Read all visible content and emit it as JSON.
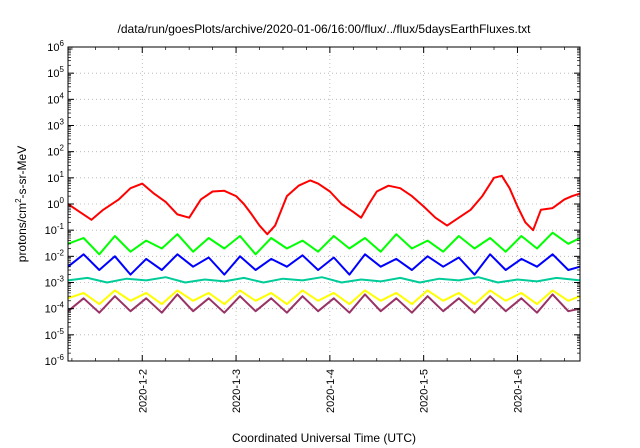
{
  "chart_data": {
    "type": "line",
    "title": "/data/run/goesPlots/archive/2020-01-06/16:00/flux/../flux/5daysEarthFluxes.txt",
    "xlabel": "Coordinated Universal Time (UTC)",
    "ylabel": {
      "base": "protons/cm",
      "exp": "2",
      "rest": "-s-sr-MeV"
    },
    "y_scale": "log",
    "ylim": [
      1e-06,
      1000000.0
    ],
    "xlim": [
      "2020-01-01T05:00",
      "2020-01-06T16:00"
    ],
    "grid": true,
    "legend": "none",
    "y_ticks": [
      {
        "value": 1e-06,
        "base": "10",
        "exp": "-6"
      },
      {
        "value": 1e-05,
        "base": "10",
        "exp": "-5"
      },
      {
        "value": 0.0001,
        "base": "10",
        "exp": "-4"
      },
      {
        "value": 0.001,
        "base": "10",
        "exp": "-3"
      },
      {
        "value": 0.01,
        "base": "10",
        "exp": "-2"
      },
      {
        "value": 0.1,
        "base": "10",
        "exp": "-1"
      },
      {
        "value": 1,
        "base": "10",
        "exp": "0"
      },
      {
        "value": 10,
        "base": "10",
        "exp": "1"
      },
      {
        "value": 100,
        "base": "10",
        "exp": "2"
      },
      {
        "value": 1000,
        "base": "10",
        "exp": "3"
      },
      {
        "value": 10000,
        "base": "10",
        "exp": "4"
      },
      {
        "value": 100000,
        "base": "10",
        "exp": "5"
      },
      {
        "value": 1000000,
        "base": "10",
        "exp": "6"
      }
    ],
    "x_ticks": [
      {
        "value": "2020-01-02T00:00",
        "label": "2020-1-2"
      },
      {
        "value": "2020-01-03T00:00",
        "label": "2020-1-3"
      },
      {
        "value": "2020-01-04T00:00",
        "label": "2020-1-4"
      },
      {
        "value": "2020-01-05T00:00",
        "label": "2020-1-5"
      },
      {
        "value": "2020-01-06T00:00",
        "label": "2020-1-6"
      }
    ],
    "series": [
      {
        "color": "#ff0000",
        "x": [
          "2020-01-01T05:00",
          "2020-01-01T08:00",
          "2020-01-01T11:00",
          "2020-01-01T14:00",
          "2020-01-01T18:00",
          "2020-01-01T21:00",
          "2020-01-02T00:00",
          "2020-01-02T03:00",
          "2020-01-02T06:00",
          "2020-01-02T09:00",
          "2020-01-02T12:00",
          "2020-01-02T15:00",
          "2020-01-02T18:00",
          "2020-01-02T21:00",
          "2020-01-03T00:00",
          "2020-01-03T02:00",
          "2020-01-03T04:00",
          "2020-01-03T06:00",
          "2020-01-03T08:00",
          "2020-01-03T10:00",
          "2020-01-03T13:00",
          "2020-01-03T16:00",
          "2020-01-03T19:00",
          "2020-01-03T21:00",
          "2020-01-04T00:00",
          "2020-01-04T03:00",
          "2020-01-04T06:00",
          "2020-01-04T08:00",
          "2020-01-04T10:00",
          "2020-01-04T12:00",
          "2020-01-04T15:00",
          "2020-01-04T18:00",
          "2020-01-04T21:00",
          "2020-01-05T00:00",
          "2020-01-05T03:00",
          "2020-01-05T06:00",
          "2020-01-05T09:00",
          "2020-01-05T12:00",
          "2020-01-05T15:00",
          "2020-01-05T18:00",
          "2020-01-05T20:00",
          "2020-01-05T22:00",
          "2020-01-06T00:00",
          "2020-01-06T02:00",
          "2020-01-06T04:00",
          "2020-01-06T06:00",
          "2020-01-06T09:00",
          "2020-01-06T12:00",
          "2020-01-06T14:00",
          "2020-01-06T16:00"
        ],
        "y": [
          1.0,
          0.5,
          0.25,
          0.6,
          1.5,
          4,
          6,
          2.5,
          1.2,
          0.4,
          0.3,
          1.5,
          3,
          3.2,
          2,
          1.0,
          0.4,
          0.15,
          0.07,
          0.15,
          2,
          5,
          8,
          6,
          3,
          1.0,
          0.5,
          0.3,
          1.0,
          3,
          5,
          4,
          2,
          0.8,
          0.3,
          0.15,
          0.3,
          0.6,
          2,
          10,
          12,
          4,
          0.8,
          0.2,
          0.1,
          0.6,
          0.7,
          1.5,
          2,
          2.5
        ]
      },
      {
        "color": "#00ff00",
        "x": [
          "2020-01-01T05:00",
          "2020-01-01T09:00",
          "2020-01-01T13:00",
          "2020-01-01T17:00",
          "2020-01-01T21:00",
          "2020-01-02T01:00",
          "2020-01-02T05:00",
          "2020-01-02T09:00",
          "2020-01-02T13:00",
          "2020-01-02T17:00",
          "2020-01-02T21:00",
          "2020-01-03T01:00",
          "2020-01-03T05:00",
          "2020-01-03T09:00",
          "2020-01-03T13:00",
          "2020-01-03T17:00",
          "2020-01-03T21:00",
          "2020-01-04T01:00",
          "2020-01-04T05:00",
          "2020-01-04T09:00",
          "2020-01-04T13:00",
          "2020-01-04T17:00",
          "2020-01-04T21:00",
          "2020-01-05T01:00",
          "2020-01-05T05:00",
          "2020-01-05T09:00",
          "2020-01-05T13:00",
          "2020-01-05T17:00",
          "2020-01-05T21:00",
          "2020-01-06T01:00",
          "2020-01-06T05:00",
          "2020-01-06T09:00",
          "2020-01-06T13:00",
          "2020-01-06T16:00"
        ],
        "y": [
          0.03,
          0.05,
          0.012,
          0.06,
          0.015,
          0.04,
          0.02,
          0.07,
          0.015,
          0.05,
          0.02,
          0.06,
          0.012,
          0.05,
          0.02,
          0.04,
          0.015,
          0.06,
          0.02,
          0.05,
          0.015,
          0.07,
          0.02,
          0.04,
          0.015,
          0.06,
          0.02,
          0.05,
          0.015,
          0.06,
          0.02,
          0.08,
          0.03,
          0.05
        ]
      },
      {
        "color": "#0000ff",
        "x": [
          "2020-01-01T05:00",
          "2020-01-01T09:00",
          "2020-01-01T13:00",
          "2020-01-01T17:00",
          "2020-01-01T21:00",
          "2020-01-02T01:00",
          "2020-01-02T05:00",
          "2020-01-02T09:00",
          "2020-01-02T13:00",
          "2020-01-02T17:00",
          "2020-01-02T21:00",
          "2020-01-03T01:00",
          "2020-01-03T05:00",
          "2020-01-03T09:00",
          "2020-01-03T13:00",
          "2020-01-03T17:00",
          "2020-01-03T21:00",
          "2020-01-04T01:00",
          "2020-01-04T05:00",
          "2020-01-04T09:00",
          "2020-01-04T13:00",
          "2020-01-04T17:00",
          "2020-01-04T21:00",
          "2020-01-05T01:00",
          "2020-01-05T05:00",
          "2020-01-05T09:00",
          "2020-01-05T13:00",
          "2020-01-05T17:00",
          "2020-01-05T21:00",
          "2020-01-06T01:00",
          "2020-01-06T05:00",
          "2020-01-06T09:00",
          "2020-01-06T13:00",
          "2020-01-06T16:00"
        ],
        "y": [
          0.004,
          0.012,
          0.003,
          0.01,
          0.002,
          0.008,
          0.003,
          0.012,
          0.004,
          0.009,
          0.002,
          0.01,
          0.003,
          0.008,
          0.004,
          0.011,
          0.003,
          0.009,
          0.002,
          0.012,
          0.004,
          0.008,
          0.003,
          0.01,
          0.004,
          0.009,
          0.002,
          0.012,
          0.003,
          0.008,
          0.004,
          0.012,
          0.003,
          0.004
        ]
      },
      {
        "color": "#00cc99",
        "x": [
          "2020-01-01T05:00",
          "2020-01-01T10:00",
          "2020-01-01T15:00",
          "2020-01-01T20:00",
          "2020-01-02T01:00",
          "2020-01-02T06:00",
          "2020-01-02T11:00",
          "2020-01-02T16:00",
          "2020-01-02T21:00",
          "2020-01-03T02:00",
          "2020-01-03T07:00",
          "2020-01-03T12:00",
          "2020-01-03T17:00",
          "2020-01-03T22:00",
          "2020-01-04T03:00",
          "2020-01-04T08:00",
          "2020-01-04T13:00",
          "2020-01-04T18:00",
          "2020-01-04T23:00",
          "2020-01-05T04:00",
          "2020-01-05T09:00",
          "2020-01-05T14:00",
          "2020-01-05T19:00",
          "2020-01-06T00:00",
          "2020-01-06T05:00",
          "2020-01-06T10:00",
          "2020-01-06T16:00"
        ],
        "y": [
          0.0012,
          0.0015,
          0.001,
          0.0014,
          0.0012,
          0.0016,
          0.001,
          0.0013,
          0.0011,
          0.0015,
          0.001,
          0.0014,
          0.0012,
          0.0016,
          0.001,
          0.0013,
          0.0011,
          0.0015,
          0.001,
          0.0014,
          0.0012,
          0.0016,
          0.001,
          0.0013,
          0.0011,
          0.0015,
          0.0012
        ]
      },
      {
        "color": "#ffff00",
        "x": [
          "2020-01-01T05:00",
          "2020-01-01T09:00",
          "2020-01-01T13:00",
          "2020-01-01T17:00",
          "2020-01-01T21:00",
          "2020-01-02T01:00",
          "2020-01-02T05:00",
          "2020-01-02T09:00",
          "2020-01-02T13:00",
          "2020-01-02T17:00",
          "2020-01-02T21:00",
          "2020-01-03T01:00",
          "2020-01-03T05:00",
          "2020-01-03T09:00",
          "2020-01-03T13:00",
          "2020-01-03T17:00",
          "2020-01-03T21:00",
          "2020-01-04T01:00",
          "2020-01-04T05:00",
          "2020-01-04T09:00",
          "2020-01-04T13:00",
          "2020-01-04T17:00",
          "2020-01-04T21:00",
          "2020-01-05T01:00",
          "2020-01-05T05:00",
          "2020-01-05T09:00",
          "2020-01-05T13:00",
          "2020-01-05T17:00",
          "2020-01-05T21:00",
          "2020-01-06T01:00",
          "2020-01-06T05:00",
          "2020-01-06T09:00",
          "2020-01-06T13:00",
          "2020-01-06T16:00"
        ],
        "y": [
          0.00025,
          0.0004,
          0.00015,
          0.0005,
          0.0002,
          0.0004,
          0.00015,
          0.0005,
          0.0002,
          0.0004,
          0.00015,
          0.0005,
          0.0002,
          0.0004,
          0.00015,
          0.0005,
          0.0002,
          0.0004,
          0.00015,
          0.0005,
          0.0002,
          0.0004,
          0.00015,
          0.0005,
          0.0002,
          0.0004,
          0.00015,
          0.0005,
          0.0002,
          0.0004,
          0.00015,
          0.0005,
          0.0002,
          0.0003
        ]
      },
      {
        "color": "#993366",
        "x": [
          "2020-01-01T05:00",
          "2020-01-01T09:00",
          "2020-01-01T13:00",
          "2020-01-01T17:00",
          "2020-01-01T21:00",
          "2020-01-02T01:00",
          "2020-01-02T05:00",
          "2020-01-02T09:00",
          "2020-01-02T13:00",
          "2020-01-02T17:00",
          "2020-01-02T21:00",
          "2020-01-03T01:00",
          "2020-01-03T05:00",
          "2020-01-03T09:00",
          "2020-01-03T13:00",
          "2020-01-03T17:00",
          "2020-01-03T21:00",
          "2020-01-04T01:00",
          "2020-01-04T05:00",
          "2020-01-04T09:00",
          "2020-01-04T13:00",
          "2020-01-04T17:00",
          "2020-01-04T21:00",
          "2020-01-05T01:00",
          "2020-01-05T05:00",
          "2020-01-05T09:00",
          "2020-01-05T13:00",
          "2020-01-05T17:00",
          "2020-01-05T21:00",
          "2020-01-06T01:00",
          "2020-01-06T05:00",
          "2020-01-06T09:00",
          "2020-01-06T13:00",
          "2020-01-06T16:00"
        ],
        "y": [
          8e-05,
          0.00025,
          7e-05,
          0.0003,
          8e-05,
          0.00025,
          7e-05,
          0.00035,
          8e-05,
          0.00025,
          7e-05,
          0.0003,
          8e-05,
          0.00025,
          7e-05,
          0.0003,
          8e-05,
          0.00025,
          7e-05,
          0.00035,
          8e-05,
          0.00025,
          7e-05,
          0.0003,
          8e-05,
          0.00025,
          7e-05,
          0.0003,
          8e-05,
          0.00025,
          7e-05,
          0.00035,
          8e-05,
          0.0001
        ]
      }
    ]
  }
}
